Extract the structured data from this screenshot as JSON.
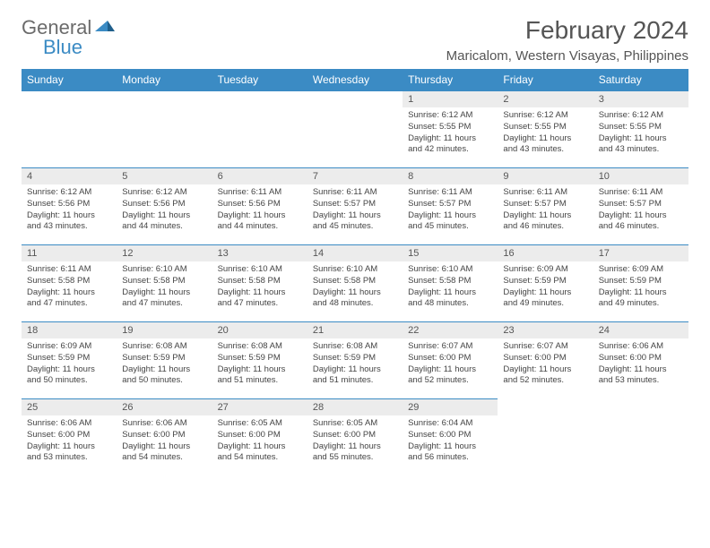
{
  "brand": {
    "part1": "General",
    "part2": "Blue"
  },
  "title": "February 2024",
  "location": "Maricalom, Western Visayas, Philippines",
  "colors": {
    "header_bg": "#3b8bc4",
    "header_text": "#ffffff",
    "daynum_bg": "#ececec",
    "text": "#444444",
    "rule": "#3b8bc4",
    "page_bg": "#ffffff"
  },
  "weekdays": [
    "Sunday",
    "Monday",
    "Tuesday",
    "Wednesday",
    "Thursday",
    "Friday",
    "Saturday"
  ],
  "first_weekday_index": 4,
  "days": [
    {
      "n": 1,
      "sunrise": "6:12 AM",
      "sunset": "5:55 PM",
      "daylight": "11 hours and 42 minutes."
    },
    {
      "n": 2,
      "sunrise": "6:12 AM",
      "sunset": "5:55 PM",
      "daylight": "11 hours and 43 minutes."
    },
    {
      "n": 3,
      "sunrise": "6:12 AM",
      "sunset": "5:55 PM",
      "daylight": "11 hours and 43 minutes."
    },
    {
      "n": 4,
      "sunrise": "6:12 AM",
      "sunset": "5:56 PM",
      "daylight": "11 hours and 43 minutes."
    },
    {
      "n": 5,
      "sunrise": "6:12 AM",
      "sunset": "5:56 PM",
      "daylight": "11 hours and 44 minutes."
    },
    {
      "n": 6,
      "sunrise": "6:11 AM",
      "sunset": "5:56 PM",
      "daylight": "11 hours and 44 minutes."
    },
    {
      "n": 7,
      "sunrise": "6:11 AM",
      "sunset": "5:57 PM",
      "daylight": "11 hours and 45 minutes."
    },
    {
      "n": 8,
      "sunrise": "6:11 AM",
      "sunset": "5:57 PM",
      "daylight": "11 hours and 45 minutes."
    },
    {
      "n": 9,
      "sunrise": "6:11 AM",
      "sunset": "5:57 PM",
      "daylight": "11 hours and 46 minutes."
    },
    {
      "n": 10,
      "sunrise": "6:11 AM",
      "sunset": "5:57 PM",
      "daylight": "11 hours and 46 minutes."
    },
    {
      "n": 11,
      "sunrise": "6:11 AM",
      "sunset": "5:58 PM",
      "daylight": "11 hours and 47 minutes."
    },
    {
      "n": 12,
      "sunrise": "6:10 AM",
      "sunset": "5:58 PM",
      "daylight": "11 hours and 47 minutes."
    },
    {
      "n": 13,
      "sunrise": "6:10 AM",
      "sunset": "5:58 PM",
      "daylight": "11 hours and 47 minutes."
    },
    {
      "n": 14,
      "sunrise": "6:10 AM",
      "sunset": "5:58 PM",
      "daylight": "11 hours and 48 minutes."
    },
    {
      "n": 15,
      "sunrise": "6:10 AM",
      "sunset": "5:58 PM",
      "daylight": "11 hours and 48 minutes."
    },
    {
      "n": 16,
      "sunrise": "6:09 AM",
      "sunset": "5:59 PM",
      "daylight": "11 hours and 49 minutes."
    },
    {
      "n": 17,
      "sunrise": "6:09 AM",
      "sunset": "5:59 PM",
      "daylight": "11 hours and 49 minutes."
    },
    {
      "n": 18,
      "sunrise": "6:09 AM",
      "sunset": "5:59 PM",
      "daylight": "11 hours and 50 minutes."
    },
    {
      "n": 19,
      "sunrise": "6:08 AM",
      "sunset": "5:59 PM",
      "daylight": "11 hours and 50 minutes."
    },
    {
      "n": 20,
      "sunrise": "6:08 AM",
      "sunset": "5:59 PM",
      "daylight": "11 hours and 51 minutes."
    },
    {
      "n": 21,
      "sunrise": "6:08 AM",
      "sunset": "5:59 PM",
      "daylight": "11 hours and 51 minutes."
    },
    {
      "n": 22,
      "sunrise": "6:07 AM",
      "sunset": "6:00 PM",
      "daylight": "11 hours and 52 minutes."
    },
    {
      "n": 23,
      "sunrise": "6:07 AM",
      "sunset": "6:00 PM",
      "daylight": "11 hours and 52 minutes."
    },
    {
      "n": 24,
      "sunrise": "6:06 AM",
      "sunset": "6:00 PM",
      "daylight": "11 hours and 53 minutes."
    },
    {
      "n": 25,
      "sunrise": "6:06 AM",
      "sunset": "6:00 PM",
      "daylight": "11 hours and 53 minutes."
    },
    {
      "n": 26,
      "sunrise": "6:06 AM",
      "sunset": "6:00 PM",
      "daylight": "11 hours and 54 minutes."
    },
    {
      "n": 27,
      "sunrise": "6:05 AM",
      "sunset": "6:00 PM",
      "daylight": "11 hours and 54 minutes."
    },
    {
      "n": 28,
      "sunrise": "6:05 AM",
      "sunset": "6:00 PM",
      "daylight": "11 hours and 55 minutes."
    },
    {
      "n": 29,
      "sunrise": "6:04 AM",
      "sunset": "6:00 PM",
      "daylight": "11 hours and 56 minutes."
    }
  ],
  "labels": {
    "sunrise": "Sunrise: ",
    "sunset": "Sunset: ",
    "daylight": "Daylight: "
  }
}
